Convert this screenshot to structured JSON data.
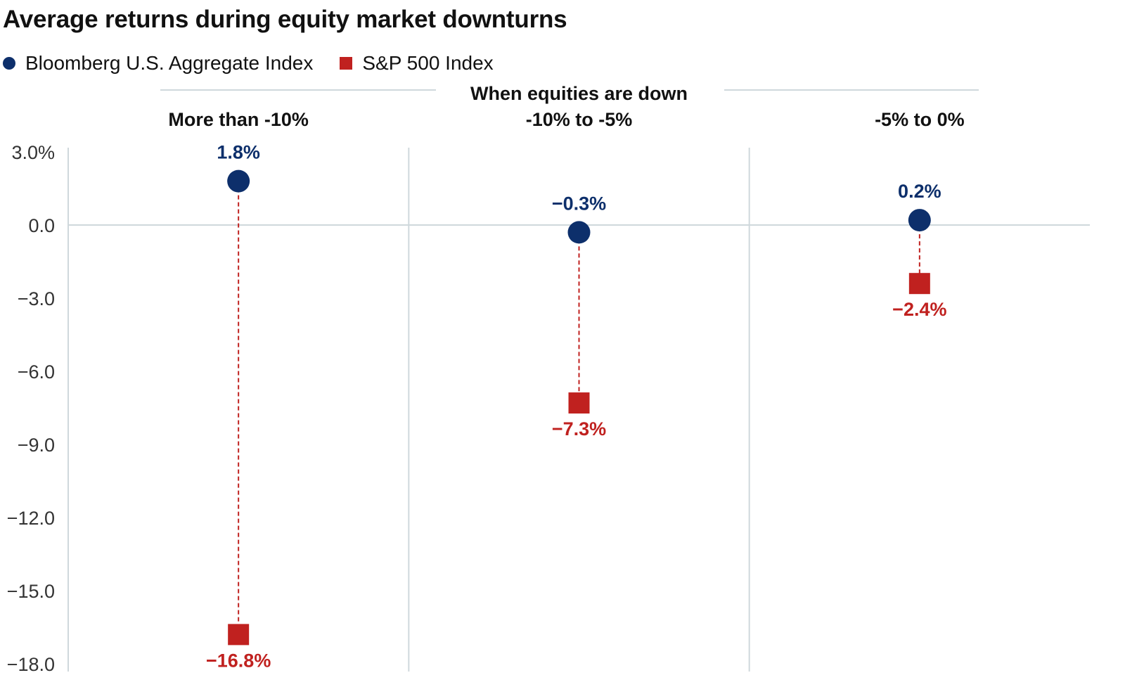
{
  "chart_data": {
    "type": "scatter",
    "title": "Average returns during equity market downturns",
    "group_label": "When equities are down",
    "categories": [
      "More than -10%",
      "-10% to -5%",
      "-5% to 0%"
    ],
    "series": [
      {
        "name": "Bloomberg U.S. Aggregate Index",
        "marker": "circle",
        "color": "#0d2f6b",
        "values": [
          1.8,
          -0.3,
          0.2
        ],
        "labels": [
          "1.8%",
          "−0.3%",
          "0.2%"
        ]
      },
      {
        "name": "S&P 500 Index",
        "marker": "square",
        "color": "#c0211f",
        "values": [
          -16.8,
          -7.3,
          -2.4
        ],
        "labels": [
          "−16.8%",
          "−7.3%",
          "−2.4%"
        ]
      }
    ],
    "ylim": [
      -18,
      3
    ],
    "yticks": [
      3,
      0,
      -3,
      -6,
      -9,
      -12,
      -15,
      -18
    ],
    "ytick_labels": [
      "3.0%",
      "0.0",
      "−3.0",
      "−6.0",
      "−9.0",
      "−12.0",
      "−15.0",
      "−18.0"
    ],
    "grid": false,
    "legend_position": "top-left"
  }
}
